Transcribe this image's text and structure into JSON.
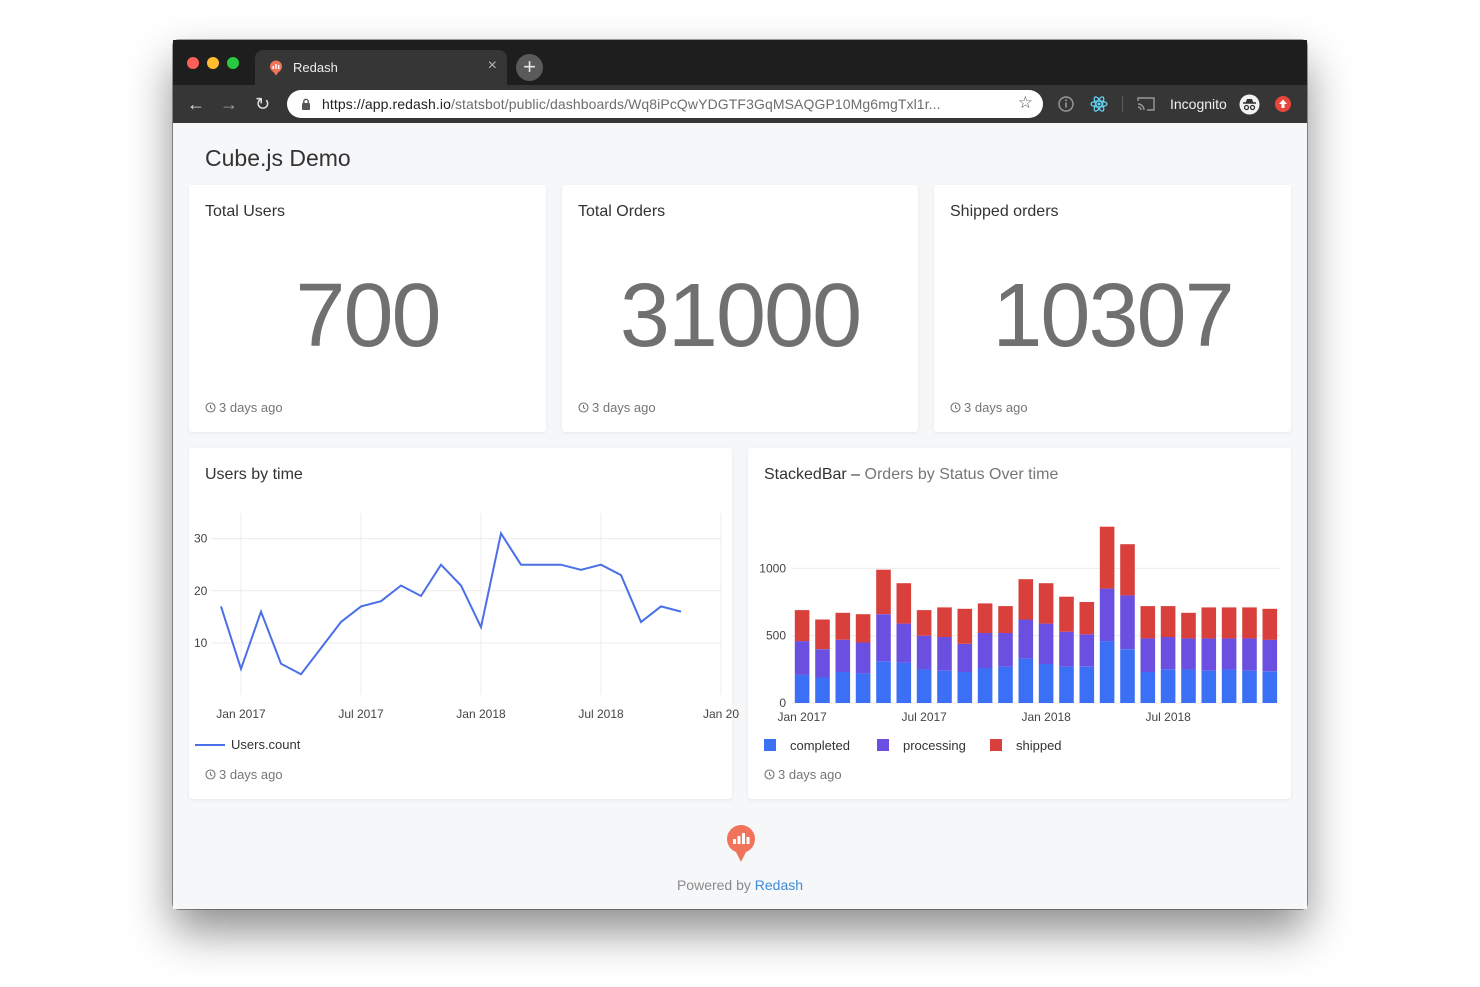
{
  "browser": {
    "tab_title": "Redash",
    "url_host": "https://app.redash.io",
    "url_path": "/statsbot/public/dashboards/Wq8iPcQwYDGTF3GqMSAQGP10Mg6mgTxl1r...",
    "incognito_label": "Incognito"
  },
  "dashboard": {
    "title": "Cube.js Demo",
    "counters": [
      {
        "title": "Total Users",
        "value": "700",
        "updated": "3 days ago"
      },
      {
        "title": "Total Orders",
        "value": "31000",
        "updated": "3 days ago"
      },
      {
        "title": "Shipped orders",
        "value": "10307",
        "updated": "3 days ago"
      }
    ],
    "line_widget": {
      "title": "Users by time",
      "updated": "3 days ago"
    },
    "bar_widget": {
      "title": "StackedBar",
      "separator": "–",
      "subtitle": "Orders by Status Over time",
      "updated": "3 days ago"
    }
  },
  "footer": {
    "powered_by": "Powered by",
    "link": "Redash"
  },
  "colors": {
    "line": "#4a6fe6",
    "completed": "#3b6ff5",
    "processing": "#6a4fe0",
    "shipped": "#d9403b",
    "brand": "#f0735a"
  },
  "chart_data": [
    {
      "type": "line",
      "title": "Users by time",
      "x": [
        "2016-12",
        "2017-01",
        "2017-02",
        "2017-03",
        "2017-04",
        "2017-05",
        "2017-06",
        "2017-07",
        "2017-08",
        "2017-09",
        "2017-10",
        "2017-11",
        "2017-12",
        "2018-01",
        "2018-02",
        "2018-03",
        "2018-04",
        "2018-05",
        "2018-06",
        "2018-07",
        "2018-08",
        "2018-09",
        "2018-10",
        "2018-11",
        "2018-12"
      ],
      "x_tick_labels": [
        "Jan 2017",
        "Jul 2017",
        "Jan 2018",
        "Jul 2018",
        "Jan 20"
      ],
      "x_tick_dates": [
        "2017-01",
        "2017-07",
        "2018-01",
        "2018-07",
        "2019-01"
      ],
      "series": [
        {
          "name": "Users.count",
          "values": [
            17,
            5,
            16,
            6,
            4,
            9,
            14,
            17,
            18,
            21,
            19,
            25,
            21,
            13,
            31,
            25,
            25,
            25,
            24,
            25,
            23,
            14,
            17,
            16,
            null
          ]
        }
      ],
      "ylim": [
        0,
        33
      ],
      "y_ticks": [
        10,
        20,
        30
      ],
      "legend": "bottom-left",
      "grid": true
    },
    {
      "type": "bar",
      "stacked": true,
      "title": "StackedBar",
      "subtitle": "Orders by Status Over time",
      "x": [
        "2017-01",
        "2017-02",
        "2017-03",
        "2017-04",
        "2017-05",
        "2017-06",
        "2017-07",
        "2017-08",
        "2017-09",
        "2017-10",
        "2017-11",
        "2017-12",
        "2018-01",
        "2018-02",
        "2018-03",
        "2018-04",
        "2018-05",
        "2018-06",
        "2018-07",
        "2018-08",
        "2018-09",
        "2018-10",
        "2018-11",
        "2018-12"
      ],
      "x_tick_labels": [
        "Jan 2017",
        "Jul 2017",
        "Jan 2018",
        "Jul 2018"
      ],
      "x_tick_dates": [
        "2017-01",
        "2017-07",
        "2018-01",
        "2018-07"
      ],
      "series": [
        {
          "name": "completed",
          "values": [
            210,
            190,
            230,
            220,
            310,
            300,
            250,
            240,
            230,
            260,
            270,
            330,
            290,
            270,
            270,
            460,
            400,
            230,
            250,
            250,
            240,
            250,
            240,
            235
          ]
        },
        {
          "name": "processing",
          "values": [
            250,
            210,
            240,
            230,
            350,
            290,
            250,
            250,
            210,
            260,
            250,
            290,
            300,
            260,
            240,
            390,
            400,
            250,
            240,
            230,
            240,
            230,
            240,
            235
          ]
        },
        {
          "name": "shipped",
          "values": [
            230,
            220,
            200,
            210,
            330,
            300,
            190,
            220,
            260,
            220,
            200,
            300,
            300,
            260,
            240,
            460,
            380,
            240,
            230,
            190,
            230,
            230,
            230,
            230
          ]
        }
      ],
      "ylim": [
        0,
        1300
      ],
      "y_ticks": [
        0,
        500,
        1000
      ],
      "legend": "bottom-left",
      "grid": true
    }
  ]
}
